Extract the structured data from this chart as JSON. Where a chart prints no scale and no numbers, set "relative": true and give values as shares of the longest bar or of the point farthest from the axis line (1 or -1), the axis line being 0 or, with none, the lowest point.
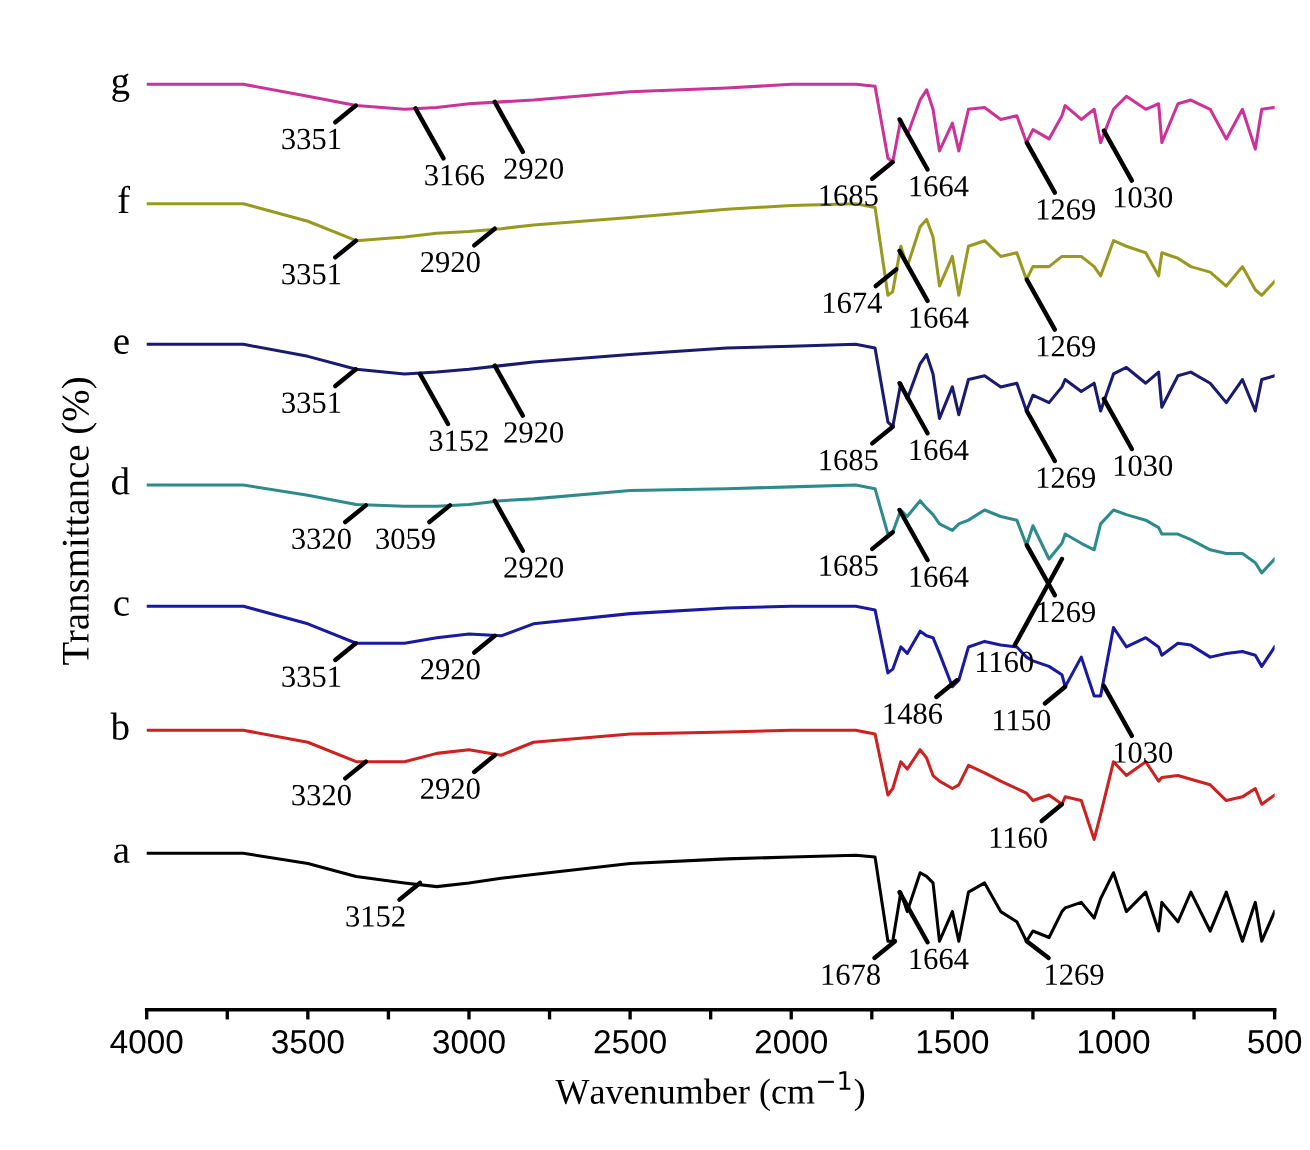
{
  "chart_data": {
    "type": "line",
    "relative": true,
    "xlabel": "Wavenumber (cm$^{−1}$)",
    "ylabel": "Transmittance (%)",
    "xlim": [
      4000,
      500
    ],
    "xticks": [
      4000,
      {
        "value": 3750,
        "label": null
      },
      3500,
      {
        "value": 3250,
        "label": null
      },
      3000,
      {
        "value": 2750,
        "label": null
      },
      2500,
      {
        "value": 2250,
        "label": null
      },
      2000,
      {
        "value": 1750,
        "label": null
      },
      1500,
      {
        "value": 1250,
        "label": null
      },
      1000,
      {
        "value": 750,
        "label": null
      },
      500
    ],
    "grid": false,
    "legend": false,
    "marker": "none",
    "line_style": "solid",
    "x": [
      4000,
      3700,
      3500,
      3350,
      3200,
      3100,
      3000,
      2900,
      2800,
      2500,
      2200,
      2000,
      1800,
      1740,
      1700,
      1685,
      1660,
      1640,
      1600,
      1580,
      1560,
      1540,
      1500,
      1480,
      1450,
      1400,
      1350,
      1300,
      1270,
      1250,
      1200,
      1160,
      1150,
      1100,
      1060,
      1040,
      1000,
      960,
      900,
      860,
      850,
      800,
      760,
      700,
      650,
      600,
      560,
      540,
      500
    ],
    "series": [
      {
        "name": "g",
        "color": "#cc3399",
        "values": [
          1,
          1,
          0.987,
          0.977,
          0.973,
          0.975,
          0.979,
          0.981,
          0.983,
          0.992,
          0.996,
          1,
          1,
          0.998,
          0.92,
          0.916,
          0.962,
          0.945,
          0.983,
          0.994,
          0.973,
          0.928,
          0.958,
          0.928,
          0.973,
          0.975,
          0.962,
          0.966,
          0.937,
          0.951,
          0.941,
          0.966,
          0.977,
          0.962,
          0.973,
          0.937,
          0.973,
          0.987,
          0.973,
          0.979,
          0.937,
          0.979,
          0.983,
          0.973,
          0.941,
          0.973,
          0.93,
          0.973,
          0.975
        ]
      },
      {
        "name": "f",
        "color": "#999922",
        "values": [
          0.871,
          0.871,
          0.852,
          0.831,
          0.835,
          0.839,
          0.841,
          0.844,
          0.848,
          0.856,
          0.865,
          0.869,
          0.871,
          0.867,
          0.772,
          0.776,
          0.825,
          0.803,
          0.846,
          0.854,
          0.835,
          0.782,
          0.814,
          0.772,
          0.825,
          0.831,
          0.814,
          0.818,
          0.789,
          0.803,
          0.803,
          0.814,
          0.814,
          0.814,
          0.803,
          0.793,
          0.831,
          0.825,
          0.818,
          0.793,
          0.818,
          0.812,
          0.803,
          0.797,
          0.782,
          0.803,
          0.778,
          0.772,
          0.787
        ]
      },
      {
        "name": "e",
        "color": "#1a1a6e",
        "values": [
          0.719,
          0.719,
          0.706,
          0.692,
          0.687,
          0.689,
          0.692,
          0.696,
          0.7,
          0.708,
          0.715,
          0.717,
          0.719,
          0.715,
          0.635,
          0.63,
          0.677,
          0.66,
          0.698,
          0.708,
          0.687,
          0.639,
          0.673,
          0.643,
          0.681,
          0.685,
          0.673,
          0.677,
          0.647,
          0.664,
          0.656,
          0.673,
          0.681,
          0.668,
          0.677,
          0.647,
          0.687,
          0.694,
          0.677,
          0.689,
          0.651,
          0.685,
          0.689,
          0.677,
          0.656,
          0.681,
          0.647,
          0.681,
          0.685
        ]
      },
      {
        "name": "d",
        "color": "#2e8b8b",
        "values": [
          0.567,
          0.567,
          0.556,
          0.546,
          0.544,
          0.544,
          0.546,
          0.55,
          0.552,
          0.561,
          0.563,
          0.565,
          0.567,
          0.563,
          0.514,
          0.516,
          0.54,
          0.533,
          0.55,
          0.542,
          0.535,
          0.525,
          0.518,
          0.525,
          0.529,
          0.54,
          0.533,
          0.529,
          0.502,
          0.523,
          0.487,
          0.504,
          0.514,
          0.504,
          0.497,
          0.525,
          0.54,
          0.535,
          0.529,
          0.521,
          0.514,
          0.514,
          0.508,
          0.497,
          0.493,
          0.493,
          0.483,
          0.472,
          0.487
        ]
      },
      {
        "name": "c",
        "color": "#1a1aa0",
        "values": [
          0.436,
          0.436,
          0.417,
          0.396,
          0.396,
          0.402,
          0.406,
          0.404,
          0.417,
          0.428,
          0.434,
          0.436,
          0.436,
          0.432,
          0.364,
          0.368,
          0.392,
          0.385,
          0.409,
          0.404,
          0.402,
          0.385,
          0.349,
          0.356,
          0.392,
          0.398,
          0.394,
          0.392,
          0.381,
          0.377,
          0.371,
          0.362,
          0.349,
          0.381,
          0.339,
          0.339,
          0.413,
          0.392,
          0.402,
          0.392,
          0.383,
          0.396,
          0.394,
          0.381,
          0.385,
          0.387,
          0.383,
          0.371,
          0.392
        ]
      },
      {
        "name": "b",
        "color": "#cc2222",
        "values": [
          0.302,
          0.302,
          0.289,
          0.268,
          0.268,
          0.277,
          0.281,
          0.275,
          0.289,
          0.298,
          0.3,
          0.302,
          0.302,
          0.298,
          0.232,
          0.239,
          0.268,
          0.26,
          0.281,
          0.272,
          0.253,
          0.247,
          0.239,
          0.243,
          0.264,
          0.256,
          0.247,
          0.239,
          0.234,
          0.226,
          0.232,
          0.222,
          0.23,
          0.226,
          0.184,
          0.211,
          0.268,
          0.253,
          0.268,
          0.247,
          0.251,
          0.253,
          0.249,
          0.243,
          0.226,
          0.23,
          0.239,
          0.222,
          0.232
        ]
      },
      {
        "name": "a",
        "color": "#000000",
        "values": [
          0.169,
          0.169,
          0.158,
          0.144,
          0.137,
          0.133,
          0.137,
          0.142,
          0.146,
          0.158,
          0.163,
          0.165,
          0.167,
          0.165,
          0.074,
          0.074,
          0.127,
          0.106,
          0.148,
          0.144,
          0.137,
          0.074,
          0.106,
          0.074,
          0.127,
          0.137,
          0.106,
          0.095,
          0.074,
          0.085,
          0.078,
          0.106,
          0.11,
          0.116,
          0.099,
          0.12,
          0.148,
          0.106,
          0.127,
          0.085,
          0.116,
          0.095,
          0.127,
          0.085,
          0.127,
          0.074,
          0.116,
          0.074,
          0.106
        ]
      }
    ],
    "annotations": [
      {
        "text": "3351",
        "x": 3351,
        "y": 0.977
      },
      {
        "text": "3166",
        "x": 3166,
        "y": 0.974
      },
      {
        "text": "2920",
        "x": 2920,
        "y": 0.981
      },
      {
        "text": "1685",
        "x": 1685,
        "y": 0.916
      },
      {
        "text": "1664",
        "x": 1664,
        "y": 0.962
      },
      {
        "text": "1269",
        "x": 1269,
        "y": 0.937
      },
      {
        "text": "1030",
        "x": 1030,
        "y": 0.95
      },
      {
        "text": "3351",
        "x": 3351,
        "y": 0.831
      },
      {
        "text": "2920",
        "x": 2920,
        "y": 0.844
      },
      {
        "text": "1674",
        "x": 1674,
        "y": 0.8
      },
      {
        "text": "1664",
        "x": 1664,
        "y": 0.82
      },
      {
        "text": "1269",
        "x": 1269,
        "y": 0.789
      },
      {
        "text": "3351",
        "x": 3351,
        "y": 0.692
      },
      {
        "text": "3152",
        "x": 3152,
        "y": 0.687
      },
      {
        "text": "2920",
        "x": 2920,
        "y": 0.696
      },
      {
        "text": "1685",
        "x": 1685,
        "y": 0.63
      },
      {
        "text": "1664",
        "x": 1664,
        "y": 0.677
      },
      {
        "text": "1269",
        "x": 1269,
        "y": 0.647
      },
      {
        "text": "1030",
        "x": 1030,
        "y": 0.66
      },
      {
        "text": "3320",
        "x": 3320,
        "y": 0.545
      },
      {
        "text": "3059",
        "x": 3059,
        "y": 0.545
      },
      {
        "text": "2920",
        "x": 2920,
        "y": 0.55
      },
      {
        "text": "1685",
        "x": 1685,
        "y": 0.516
      },
      {
        "text": "1664",
        "x": 1664,
        "y": 0.54
      },
      {
        "text": "1269",
        "x": 1269,
        "y": 0.502
      },
      {
        "text": "1160",
        "x": 1160,
        "y": 0.487
      },
      {
        "text": "3351",
        "x": 3351,
        "y": 0.396
      },
      {
        "text": "2920",
        "x": 2920,
        "y": 0.404
      },
      {
        "text": "1486",
        "x": 1486,
        "y": 0.356
      },
      {
        "text": "1150",
        "x": 1150,
        "y": 0.349
      },
      {
        "text": "1030",
        "x": 1030,
        "y": 0.35
      },
      {
        "text": "3320",
        "x": 3320,
        "y": 0.268
      },
      {
        "text": "2920",
        "x": 2920,
        "y": 0.275
      },
      {
        "text": "1160",
        "x": 1160,
        "y": 0.222
      },
      {
        "text": "3152",
        "x": 3152,
        "y": 0.137
      },
      {
        "text": "1678",
        "x": 1678,
        "y": 0.074
      },
      {
        "text": "1664",
        "x": 1664,
        "y": 0.127
      },
      {
        "text": "1269",
        "x": 1269,
        "y": 0.074
      }
    ]
  }
}
